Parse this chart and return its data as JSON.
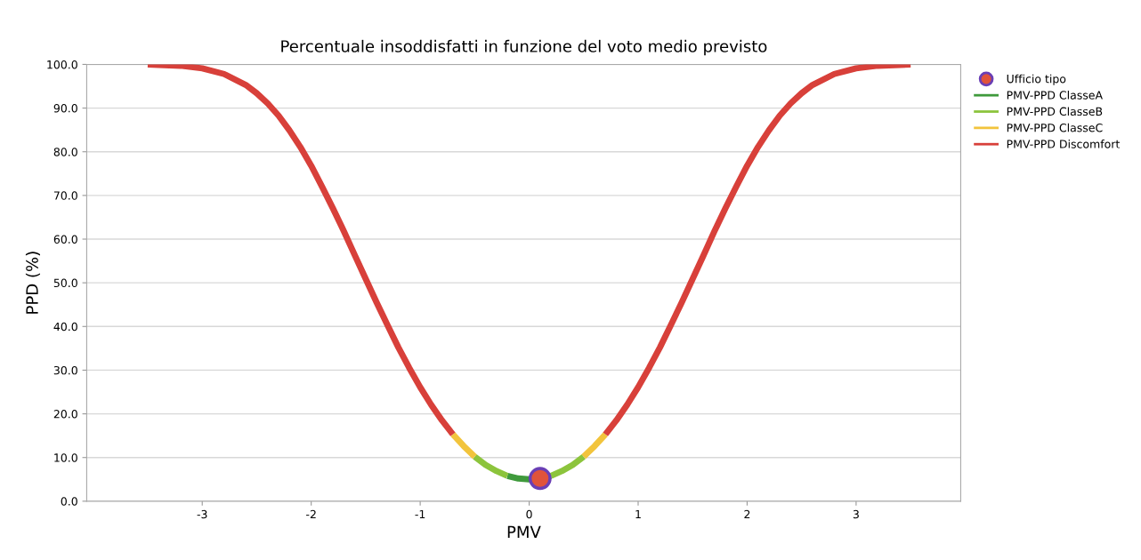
{
  "chart_data": {
    "type": "line",
    "title": "Percentuale insoddisfatti in funzione del voto medio previsto",
    "xlabel": "PMV",
    "ylabel": "PPD (%)",
    "xlim": [
      -4.06,
      3.96
    ],
    "xticks": [
      -3,
      -2,
      -1,
      0,
      1,
      2,
      3
    ],
    "ylim": [
      0,
      100
    ],
    "yticks": [
      {
        "value": 0,
        "label": "0.0"
      },
      {
        "value": 10,
        "label": "10.0"
      },
      {
        "value": 20,
        "label": "20.0"
      },
      {
        "value": 30,
        "label": "30.0"
      },
      {
        "value": 40,
        "label": "40.0"
      },
      {
        "value": 50,
        "label": "50.0"
      },
      {
        "value": 60,
        "label": "60.0"
      },
      {
        "value": 70,
        "label": "70.0"
      },
      {
        "value": 80,
        "label": "80.0"
      },
      {
        "value": 90,
        "label": "90.0"
      },
      {
        "value": 100,
        "label": "100.0"
      }
    ],
    "grid": "y",
    "legend": "top right",
    "marker": "none",
    "line_style": "solid",
    "series": [
      {
        "name": "Ufficio tipo",
        "type": "scatter",
        "marker": "circle",
        "color": "#e0533a",
        "x": [
          0.1
        ],
        "values": [
          5.2
        ]
      },
      {
        "name": "PMV-PPD ClasseA",
        "color": "#3f9a3c",
        "x": [
          -0.2,
          -0.1,
          0,
          0.1,
          0.2
        ],
        "values": [
          5.8,
          5.2,
          5.0,
          5.2,
          5.8
        ]
      },
      {
        "name": "PMV-PPD ClasseB",
        "color": "#8cc43c",
        "x": [
          -0.5,
          -0.4,
          -0.3,
          -0.2,
          0,
          0.2,
          0.3,
          0.4,
          0.5
        ],
        "values": [
          10.2,
          8.3,
          6.9,
          5.8,
          null,
          5.8,
          6.9,
          8.3,
          10.2
        ]
      },
      {
        "name": "PMV-PPD ClasseC",
        "color": "#f2c43c",
        "x": [
          -0.7,
          -0.6,
          -0.5,
          0,
          0.5,
          0.6,
          0.7
        ],
        "values": [
          15.3,
          12.6,
          10.2,
          null,
          10.2,
          12.6,
          15.3
        ]
      },
      {
        "name": "PMV-PPD Discomfort",
        "color": "#d8403a",
        "x": [
          -3.5,
          -3.2,
          -3.0,
          -2.8,
          -2.6,
          -2.5,
          -2.4,
          -2.3,
          -2.2,
          -2.1,
          -2.0,
          -1.9,
          -1.8,
          -1.7,
          -1.6,
          -1.5,
          -1.4,
          -1.3,
          -1.2,
          -1.1,
          -1.0,
          -0.9,
          -0.8,
          -0.7,
          0,
          0.7,
          0.8,
          0.9,
          1.0,
          1.1,
          1.2,
          1.3,
          1.4,
          1.5,
          1.6,
          1.7,
          1.8,
          1.9,
          2.0,
          2.1,
          2.2,
          2.3,
          2.4,
          2.5,
          2.6,
          2.8,
          3.0,
          3.2,
          3.5
        ],
        "values": [
          100.0,
          99.7,
          99.1,
          97.8,
          95.3,
          93.4,
          91.1,
          88.3,
          84.9,
          81.1,
          76.8,
          72.0,
          67.0,
          61.8,
          56.3,
          50.9,
          45.5,
          40.3,
          35.2,
          30.5,
          26.1,
          22.1,
          18.5,
          15.3,
          null,
          15.3,
          18.5,
          22.1,
          26.1,
          30.5,
          35.2,
          40.3,
          45.5,
          50.9,
          56.3,
          61.8,
          67.0,
          72.0,
          76.8,
          81.1,
          84.9,
          88.3,
          91.1,
          93.4,
          95.3,
          97.8,
          99.1,
          99.7,
          100.0
        ]
      }
    ]
  }
}
